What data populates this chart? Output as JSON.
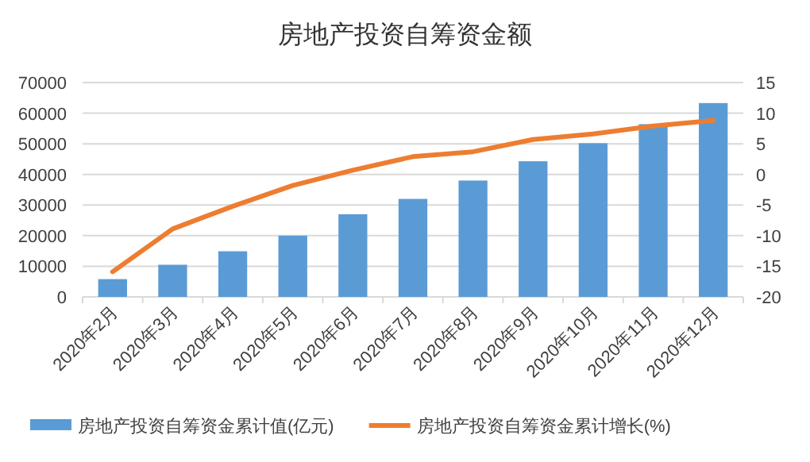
{
  "chart_data": {
    "type": "bar",
    "title": "房地产投资自筹资金额",
    "categories": [
      "2020年2月",
      "2020年3月",
      "2020年4月",
      "2020年5月",
      "2020年6月",
      "2020年7月",
      "2020年8月",
      "2020年9月",
      "2020年10月",
      "2020年11月",
      "2020年12月"
    ],
    "series": [
      {
        "name": "房地产投资自筹资金累计值(亿元)",
        "color": "#5b9bd5",
        "values": [
          5800,
          10500,
          14900,
          20000,
          27000,
          32000,
          38000,
          44300,
          50200,
          56400,
          63300
        ]
      },
      {
        "name": "房地产投资自筹资金累计增长(%)",
        "type": "line",
        "axis": "y2",
        "color": "#ed7d31",
        "values": [
          -15.9,
          -8.9,
          -5.2,
          -1.8,
          0.7,
          2.9,
          3.7,
          5.7,
          6.6,
          7.9,
          8.8
        ]
      }
    ],
    "ylim": [
      0,
      70000
    ],
    "yticks": [
      0,
      10000,
      20000,
      30000,
      40000,
      50000,
      60000,
      70000
    ],
    "y2lim": [
      -20,
      15
    ],
    "y2ticks": [
      -20,
      -15,
      -10,
      -5,
      0,
      5,
      10,
      15
    ],
    "grid": "y",
    "legend": "bottom"
  }
}
